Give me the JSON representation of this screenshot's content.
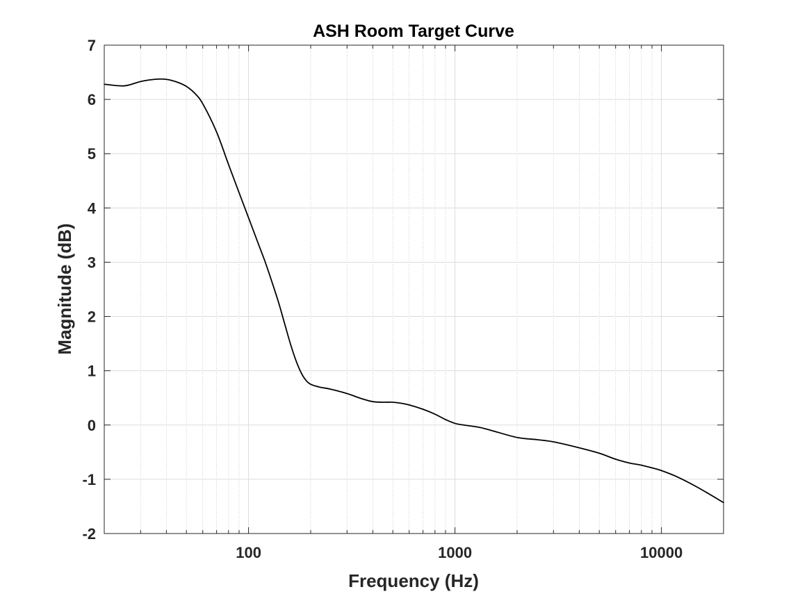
{
  "chart_data": {
    "type": "line",
    "title": "ASH Room Target Curve",
    "xlabel": "Frequency (Hz)",
    "ylabel": "Magnitude (dB)",
    "x_scale": "log",
    "xlim": [
      20,
      20000
    ],
    "ylim": [
      -2,
      7
    ],
    "x_ticks": [
      100,
      1000,
      10000
    ],
    "x_tick_labels": [
      "100",
      "1000",
      "10000"
    ],
    "y_ticks": [
      -2,
      -1,
      0,
      1,
      2,
      3,
      4,
      5,
      6,
      7
    ],
    "y_tick_labels": [
      "-2",
      "-1",
      "0",
      "1",
      "2",
      "3",
      "4",
      "5",
      "6",
      "7"
    ],
    "grid": true,
    "minor_grid": true,
    "line_color": "#000000",
    "series": [
      {
        "x": [
          20,
          25,
          30,
          35,
          40,
          45,
          50,
          55,
          60,
          70,
          80,
          90,
          100,
          110,
          120,
          130,
          140,
          150,
          160,
          170,
          180,
          190,
          200,
          220,
          250,
          300,
          350,
          400,
          450,
          500,
          550,
          600,
          700,
          800,
          900,
          1000,
          1100,
          1300,
          1500,
          2000,
          2500,
          3000,
          4000,
          5000,
          6000,
          7000,
          8000,
          9000,
          10000,
          12000,
          15000,
          20000
        ],
        "y": [
          6.28,
          6.25,
          6.33,
          6.37,
          6.37,
          6.32,
          6.24,
          6.11,
          5.92,
          5.4,
          4.8,
          4.28,
          3.82,
          3.4,
          3.02,
          2.63,
          2.25,
          1.85,
          1.48,
          1.18,
          0.96,
          0.82,
          0.75,
          0.7,
          0.66,
          0.58,
          0.49,
          0.43,
          0.42,
          0.42,
          0.4,
          0.37,
          0.29,
          0.2,
          0.1,
          0.03,
          0.0,
          -0.04,
          -0.1,
          -0.23,
          -0.27,
          -0.31,
          -0.42,
          -0.52,
          -0.63,
          -0.7,
          -0.74,
          -0.79,
          -0.84,
          -0.96,
          -1.15,
          -1.43
        ]
      }
    ]
  }
}
